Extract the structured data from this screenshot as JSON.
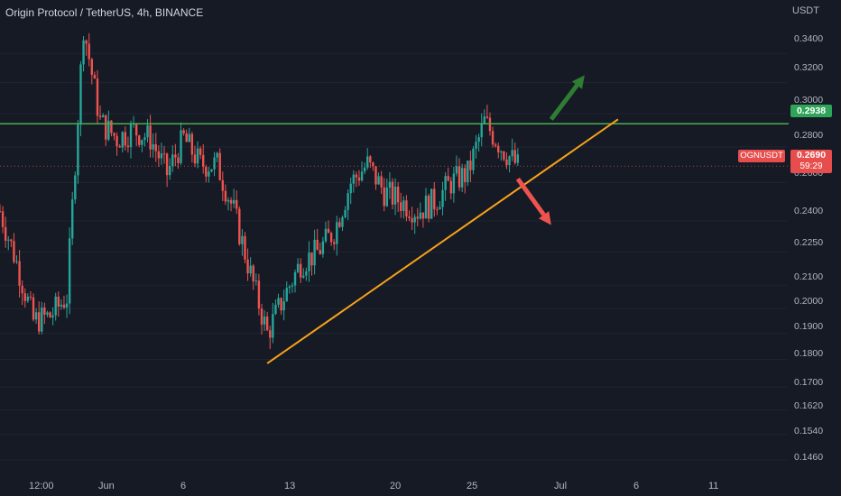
{
  "header": {
    "title": "Origin Protocol / TetherUS, 4h, BINANCE"
  },
  "axis": {
    "unit": "USDT",
    "y_ticks": [
      "0.3400",
      "0.3200",
      "0.3000",
      "0.2800",
      "0.2600",
      "0.2400",
      "0.2250",
      "0.2100",
      "0.2000",
      "0.1900",
      "0.1800",
      "0.1700",
      "0.1620",
      "0.1540",
      "0.1460"
    ],
    "x_ticks": [
      "12:00",
      "Jun",
      "6",
      "13",
      "20",
      "25",
      "Jul",
      "6",
      "11"
    ]
  },
  "labels": {
    "resistance_price": "0.2938",
    "symbol": "OGNUSDT",
    "last_price": "0.2690",
    "countdown": "59:29"
  },
  "colors": {
    "background": "#161a25",
    "up": "#26a69a",
    "down": "#ef5350",
    "resistance": "#4caf50",
    "trendline": "#f7a21b",
    "arrow_up": "#2e7d32",
    "arrow_down": "#ef5350"
  },
  "chart_data": {
    "type": "candlestick",
    "title": "Origin Protocol / TetherUS, 4h, BINANCE",
    "y_scale": "log",
    "ylim": [
      0.142,
      0.38
    ],
    "x_range": [
      "2021-05-28",
      "2021-07-14"
    ],
    "close_path": [
      [
        "2021-05-28",
        0.245
      ],
      [
        "2021-05-29",
        0.22
      ],
      [
        "2021-05-30",
        0.195
      ],
      [
        "2021-05-31",
        0.197
      ],
      [
        "2021-06-01",
        0.205
      ],
      [
        "2021-06-02",
        0.36
      ],
      [
        "2021-06-03",
        0.295
      ],
      [
        "2021-06-04",
        0.285
      ],
      [
        "2021-06-05",
        0.29
      ],
      [
        "2021-06-06",
        0.285
      ],
      [
        "2021-06-07",
        0.265
      ],
      [
        "2021-06-08",
        0.285
      ],
      [
        "2021-06-09",
        0.27
      ],
      [
        "2021-06-10",
        0.27
      ],
      [
        "2021-06-11",
        0.245
      ],
      [
        "2021-06-12",
        0.215
      ],
      [
        "2021-06-13",
        0.19
      ],
      [
        "2021-06-14",
        0.205
      ],
      [
        "2021-06-15",
        0.22
      ],
      [
        "2021-06-16",
        0.225
      ],
      [
        "2021-06-17",
        0.235
      ],
      [
        "2021-06-18",
        0.26
      ],
      [
        "2021-06-19",
        0.27
      ],
      [
        "2021-06-20",
        0.255
      ],
      [
        "2021-06-21",
        0.25
      ],
      [
        "2021-06-22",
        0.245
      ],
      [
        "2021-06-23",
        0.25
      ],
      [
        "2021-06-24",
        0.26
      ],
      [
        "2021-06-25",
        0.265
      ],
      [
        "2021-06-26",
        0.295
      ],
      [
        "2021-06-27",
        0.28
      ],
      [
        "2021-06-28",
        0.269
      ]
    ],
    "resistance": 0.2938,
    "last_price": 0.269,
    "trendline": [
      [
        "2021-06-13",
        0.1785
      ],
      [
        "2021-07-04",
        0.2965
      ]
    ],
    "arrows": [
      {
        "from": [
          "2021-06-30",
          0.2965
        ],
        "to": [
          "2021-07-02",
          0.325
        ],
        "direction": "up"
      },
      {
        "from": [
          "2021-06-28",
          0.262
        ],
        "to": [
          "2021-06-30",
          0.238
        ],
        "direction": "down"
      }
    ]
  }
}
